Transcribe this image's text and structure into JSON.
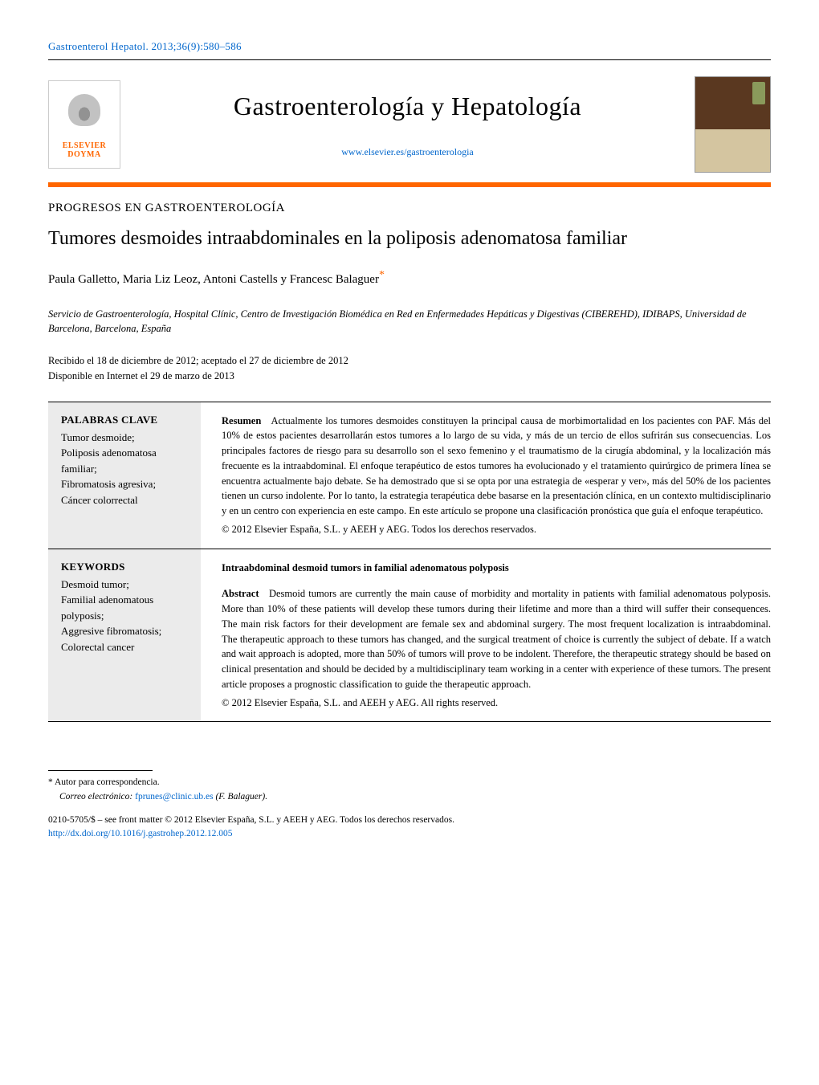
{
  "citation": "Gastroenterol Hepatol. 2013;36(9):580–586",
  "publisher": {
    "name_line1": "ELSEVIER",
    "name_line2": "DOYMA"
  },
  "journal": {
    "title": "Gastroenterología y Hepatología",
    "url": "www.elsevier.es/gastroenterologia"
  },
  "section_label": "PROGRESOS EN GASTROENTEROLOGÍA",
  "article_title": "Tumores desmoides intraabdominales en la poliposis adenomatosa familiar",
  "authors": "Paula Galletto, Maria Liz Leoz, Antoni Castells y Francesc Balaguer",
  "corr_marker": "*",
  "affiliation": "Servicio de Gastroenterología, Hospital Clínic, Centro de Investigación Biomédica en Red en Enfermedades Hepáticas y Digestivas (CIBEREHD), IDIBAPS, Universidad de Barcelona, Barcelona, España",
  "dates": {
    "received_accepted": "Recibido el 18 de diciembre de 2012; aceptado el 27 de diciembre de 2012",
    "online": "Disponible en Internet el 29 de marzo de 2013"
  },
  "abstracts": {
    "es": {
      "kw_heading": "PALABRAS CLAVE",
      "keywords": "Tumor desmoide;\nPoliposis adenomatosa familiar;\nFibromatosis agresiva;\nCáncer colorrectal",
      "lead": "Resumen",
      "body": "Actualmente los tumores desmoides constituyen la principal causa de morbimortalidad en los pacientes con PAF. Más del 10% de estos pacientes desarrollarán estos tumores a lo largo de su vida, y más de un tercio de ellos sufrirán sus consecuencias. Los principales factores de riesgo para su desarrollo son el sexo femenino y el traumatismo de la cirugía abdominal, y la localización más frecuente es la intraabdominal. El enfoque terapéutico de estos tumores ha evolucionado y el tratamiento quirúrgico de primera línea se encuentra actualmente bajo debate. Se ha demostrado que si se opta por una estrategia de «esperar y ver», más del 50% de los pacientes tienen un curso indolente. Por lo tanto, la estrategia terapéutica debe basarse en la presentación clínica, en un contexto multidisciplinario y en un centro con experiencia en este campo. En este artículo se propone una clasificación pronóstica que guía el enfoque terapéutico.",
      "copyright": "© 2012 Elsevier España, S.L. y AEEH y AEG. Todos los derechos reservados."
    },
    "en": {
      "kw_heading": "KEYWORDS",
      "keywords": "Desmoid tumor;\nFamilial adenomatous polyposis;\nAggresive fibromatosis;\nColorectal cancer",
      "title": "Intraabdominal desmoid tumors in familial adenomatous polyposis",
      "lead": "Abstract",
      "body": "Desmoid tumors are currently the main cause of morbidity and mortality in patients with familial adenomatous polyposis. More than 10% of these patients will develop these tumors during their lifetime and more than a third will suffer their consequences. The main risk factors for their development are female sex and abdominal surgery. The most frequent localization is intraabdominal. The therapeutic approach to these tumors has changed, and the surgical treatment of choice is currently the subject of debate. If a watch and wait approach is adopted, more than 50% of tumors will prove to be indolent. Therefore, the therapeutic strategy should be based on clinical presentation and should be decided by a multidisciplinary team working in a center with experience of these tumors. The present article proposes a prognostic classification to guide the therapeutic approach.",
      "copyright": "© 2012 Elsevier España, S.L. and AEEH y AEG. All rights reserved."
    }
  },
  "footer": {
    "corr_label": "Autor para correspondencia.",
    "email_label": "Correo electrónico:",
    "email": "fprunes@clinic.ub.es",
    "email_author": "(F. Balaguer).",
    "front_matter": "0210-5705/$ – see front matter © 2012 Elsevier España, S.L. y AEEH y AEG. Todos los derechos reservados.",
    "doi": "http://dx.doi.org/10.1016/j.gastrohep.2012.12.005"
  },
  "colors": {
    "link": "#0066cc",
    "accent": "#ff6600",
    "keyword_bg": "#ebebeb",
    "text": "#000000"
  }
}
